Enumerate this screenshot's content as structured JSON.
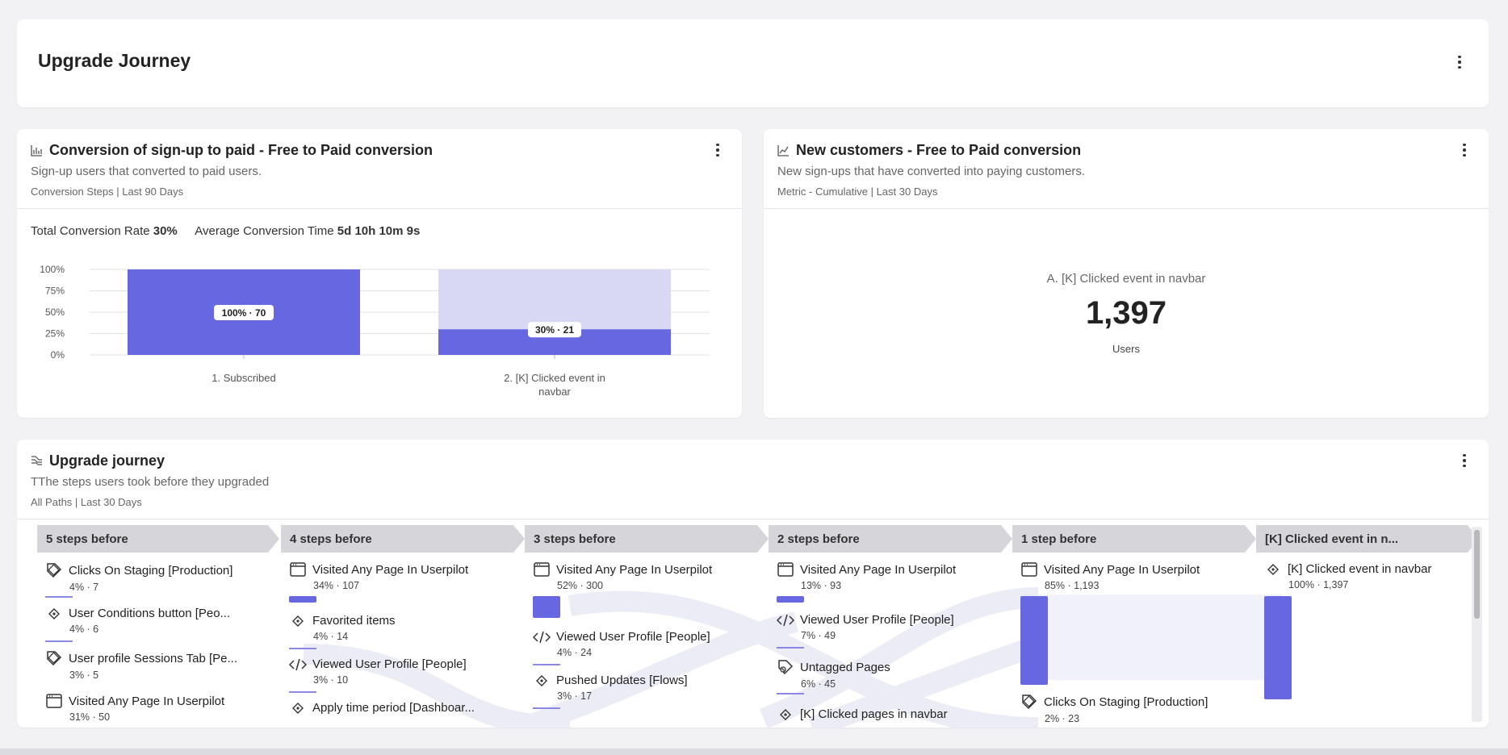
{
  "header": {
    "title": "Upgrade Journey"
  },
  "conversion": {
    "title": "Conversion of sign-up to paid - Free to Paid conversion",
    "subtitle": "Sign-up users that converted to paid users.",
    "meta": "Conversion Steps | Last 90 Days",
    "rate_label": "Total Conversion Rate",
    "rate_value": "30%",
    "time_label": "Average Conversion Time",
    "time_value": "5d 10h 10m 9s"
  },
  "chart_data": {
    "type": "bar",
    "categories": [
      "1. Subscribed",
      "2. [K] Clicked event in navbar"
    ],
    "values": [
      100,
      30
    ],
    "counts": [
      70,
      21
    ],
    "data_labels": [
      "100% · 70",
      "30% · 21"
    ],
    "ylim": [
      0,
      100
    ],
    "yticks": [
      "0%",
      "25%",
      "50%",
      "75%",
      "100%"
    ],
    "grid": true,
    "colors": {
      "bar": "#6767e2",
      "dropoff": "#d8d8f4"
    }
  },
  "metric": {
    "title": "New customers - Free to Paid conversion",
    "subtitle": "New sign-ups that have converted into paying customers.",
    "meta": "Metric - Cumulative | Last 30 Days",
    "event_label": "A. [K] Clicked event in navbar",
    "value": "1,397",
    "unit": "Users"
  },
  "journey": {
    "title": "Upgrade journey",
    "subtitle": "TThe steps users took before they upgraded",
    "meta": "All Paths | Last 30 Days",
    "columns": [
      {
        "header": "5 steps before",
        "nodes": [
          {
            "icon": "tag-icon",
            "name": "Clicks On Staging [Production]",
            "stats": "4% · 7"
          },
          {
            "icon": "target-icon",
            "name": "User Conditions button [Peo...",
            "stats": "4% · 6"
          },
          {
            "icon": "tag-icon",
            "name": "User profile Sessions Tab [Pe...",
            "stats": "3% · 5"
          },
          {
            "icon": "page-icon",
            "name": "Visited Any Page In Userpilot",
            "stats": "31% · 50"
          }
        ]
      },
      {
        "header": "4 steps before",
        "nodes": [
          {
            "icon": "page-icon",
            "name": "Visited Any Page In Userpilot",
            "stats": "34% · 107"
          },
          {
            "icon": "target-icon",
            "name": "Favorited items",
            "stats": "4% · 14"
          },
          {
            "icon": "code-icon",
            "name": "Viewed User Profile [People]",
            "stats": "3% · 10"
          },
          {
            "icon": "target-icon",
            "name": "Apply time period [Dashboar...",
            "stats": ""
          }
        ]
      },
      {
        "header": "3 steps before",
        "nodes": [
          {
            "icon": "page-icon",
            "name": "Visited Any Page In Userpilot",
            "stats": "52% · 300"
          },
          {
            "icon": "code-icon",
            "name": "Viewed User Profile [People]",
            "stats": "4% · 24"
          },
          {
            "icon": "target-icon",
            "name": "Pushed Updates [Flows]",
            "stats": "3% · 17"
          }
        ]
      },
      {
        "header": "2 steps before",
        "nodes": [
          {
            "icon": "page-icon",
            "name": "Visited Any Page In Userpilot",
            "stats": "13% · 93"
          },
          {
            "icon": "code-icon",
            "name": "Viewed User Profile [People]",
            "stats": "7% · 49"
          },
          {
            "icon": "untagged-icon",
            "name": "Untagged Pages",
            "stats": "6% · 45"
          },
          {
            "icon": "target-icon",
            "name": "[K] Clicked pages in navbar",
            "stats": ""
          }
        ]
      },
      {
        "header": "1 step before",
        "nodes": [
          {
            "icon": "page-icon",
            "name": "Visited Any Page In Userpilot",
            "stats": "85% · 1,193"
          },
          {
            "icon": "tag-icon",
            "name": "Clicks On Staging [Production]",
            "stats": "2% · 23"
          }
        ]
      },
      {
        "header": "[K] Clicked event in n...",
        "nodes": [
          {
            "icon": "target-icon",
            "name": "[K] Clicked event in navbar",
            "stats": "100% · 1,397"
          }
        ]
      }
    ]
  }
}
